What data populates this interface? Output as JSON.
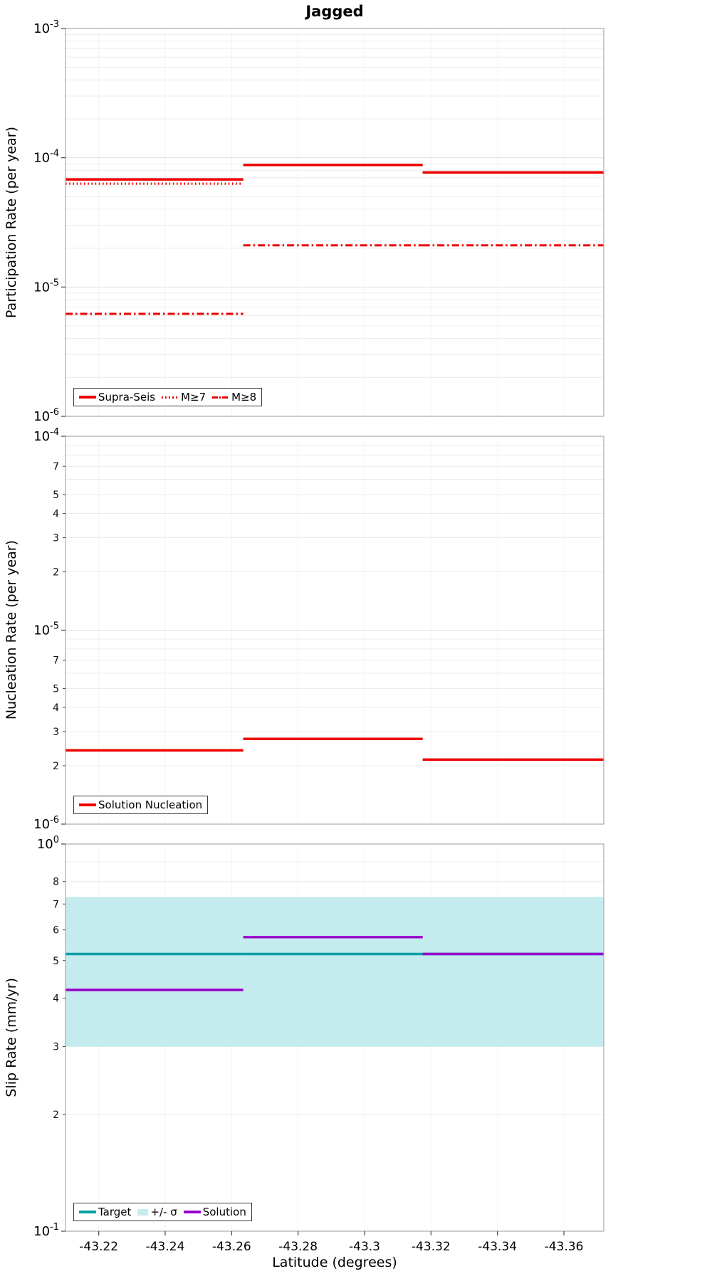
{
  "title": "Jagged",
  "colors": {
    "red": "#ee0000",
    "teal": "#00a0a5",
    "purple": "#9900cc",
    "band": "#c4ebed",
    "frame": "#a9a9a9",
    "grid": "#ececec"
  },
  "xaxis": {
    "label": "Latitude (degrees)",
    "range": [
      -43.21,
      -43.372
    ],
    "ticks": [
      {
        "v": -43.22,
        "label": "-43.22"
      },
      {
        "v": -43.24,
        "label": "-43.24"
      },
      {
        "v": -43.26,
        "label": "-43.26"
      },
      {
        "v": -43.28,
        "label": "-43.28"
      },
      {
        "v": -43.3,
        "label": "-43.3"
      },
      {
        "v": -43.32,
        "label": "-43.32"
      },
      {
        "v": -43.34,
        "label": "-43.34"
      },
      {
        "v": -43.36,
        "label": "-43.36"
      }
    ]
  },
  "segments": [
    [
      -43.21,
      -43.2635
    ],
    [
      -43.2635,
      -43.3175
    ],
    [
      -43.3175,
      -43.372
    ]
  ],
  "chart_data": [
    {
      "type": "line",
      "name": "participation",
      "ylabel": "Participation Rate (per year)",
      "ylog": true,
      "ylim": [
        1e-06,
        0.001
      ],
      "yticks": {
        "major": [
          {
            "v": 0.001,
            "base": "10",
            "exp": "-3"
          },
          {
            "v": 0.0001,
            "base": "10",
            "exp": "-4"
          },
          {
            "v": 1e-05,
            "base": "10",
            "exp": "-5"
          },
          {
            "v": 1e-06,
            "base": "10",
            "exp": "-6"
          }
        ],
        "minor": []
      },
      "series": [
        {
          "name": "Supra-Seis",
          "style": "solid",
          "color_key": "red",
          "values": [
            6.8e-05,
            8.8e-05,
            7.7e-05
          ]
        },
        {
          "name": "M≥7",
          "style": "dotted",
          "color_key": "red",
          "values": [
            6.3e-05,
            8.8e-05,
            7.7e-05
          ]
        },
        {
          "name": "M≥8",
          "style": "dashdot",
          "color_key": "red",
          "values": [
            6.2e-06,
            2.1e-05,
            2.1e-05
          ]
        }
      ],
      "legend_position": "bottom-left"
    },
    {
      "type": "line",
      "name": "nucleation",
      "ylabel": "Nucleation Rate (per year)",
      "ylog": true,
      "ylim": [
        1e-06,
        0.0001
      ],
      "yticks": {
        "major": [
          {
            "v": 0.0001,
            "base": "10",
            "exp": "-4"
          },
          {
            "v": 1e-05,
            "base": "10",
            "exp": "-5"
          },
          {
            "v": 1e-06,
            "base": "10",
            "exp": "-6"
          }
        ],
        "minor": [
          {
            "v": 7e-05,
            "label": "7"
          },
          {
            "v": 5e-05,
            "label": "5"
          },
          {
            "v": 4e-05,
            "label": "4"
          },
          {
            "v": 3e-05,
            "label": "3"
          },
          {
            "v": 2e-05,
            "label": "2"
          },
          {
            "v": 7e-06,
            "label": "7"
          },
          {
            "v": 5e-06,
            "label": "5"
          },
          {
            "v": 4e-06,
            "label": "4"
          },
          {
            "v": 3e-06,
            "label": "3"
          },
          {
            "v": 2e-06,
            "label": "2"
          }
        ]
      },
      "series": [
        {
          "name": "Solution Nucleation",
          "style": "solid",
          "color_key": "red",
          "values": [
            2.4e-06,
            2.75e-06,
            2.15e-06
          ]
        }
      ],
      "legend_position": "bottom-left"
    },
    {
      "type": "line",
      "name": "slip-rate",
      "ylabel": "Slip Rate (mm/yr)",
      "ylog": true,
      "ylim": [
        0.1,
        1
      ],
      "yticks": {
        "major": [
          {
            "v": 1,
            "base": "10",
            "exp": "0"
          },
          {
            "v": 0.1,
            "base": "10",
            "exp": "-1"
          }
        ],
        "minor": [
          {
            "v": 0.8,
            "label": "8"
          },
          {
            "v": 0.7,
            "label": "7"
          },
          {
            "v": 0.6,
            "label": "6"
          },
          {
            "v": 0.5,
            "label": "5"
          },
          {
            "v": 0.4,
            "label": "4"
          },
          {
            "v": 0.3,
            "label": "3"
          },
          {
            "v": 0.2,
            "label": "2"
          }
        ]
      },
      "band": {
        "name": "+/- σ",
        "lo": 0.3,
        "hi": 0.73,
        "color_key": "band"
      },
      "series": [
        {
          "name": "Target",
          "style": "solid",
          "color_key": "teal",
          "values": [
            0.52,
            0.52,
            0.52
          ]
        },
        {
          "name": "Solution",
          "style": "solid",
          "color_key": "purple",
          "values": [
            0.42,
            0.575,
            0.52
          ]
        }
      ],
      "legend_position": "bottom-left"
    }
  ]
}
